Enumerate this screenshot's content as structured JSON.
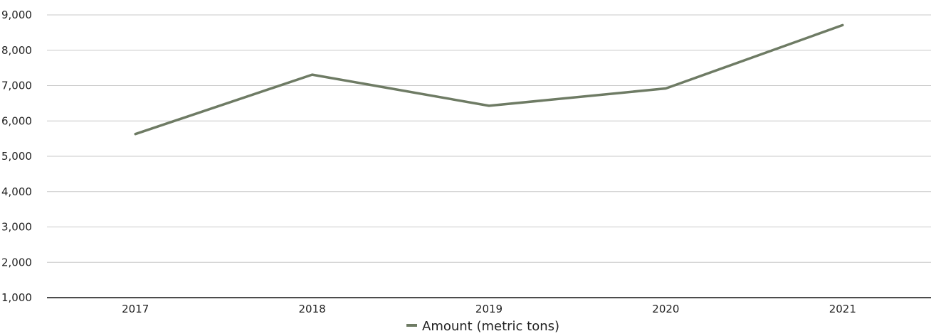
{
  "chart_data": {
    "type": "line",
    "categories": [
      "2017",
      "2018",
      "2019",
      "2020",
      "2021"
    ],
    "series": [
      {
        "name": "Amount (metric tons)",
        "values": [
          5630,
          7310,
          6430,
          6920,
          8710
        ],
        "color": "#6e7b64"
      }
    ],
    "ylim": [
      1000,
      9000
    ],
    "yticks": [
      1000,
      2000,
      3000,
      4000,
      5000,
      6000,
      7000,
      8000,
      9000
    ],
    "ytick_labels": [
      "1,000",
      "2,000",
      "3,000",
      "4,000",
      "5,000",
      "6,000",
      "7,000",
      "8,000",
      "9,000"
    ],
    "grid": true,
    "legend_position": "bottom-center",
    "title": "",
    "xlabel": "",
    "ylabel": ""
  },
  "colors": {
    "grid": "#c8c8c8",
    "axis": "#111111",
    "text": "#222222"
  }
}
